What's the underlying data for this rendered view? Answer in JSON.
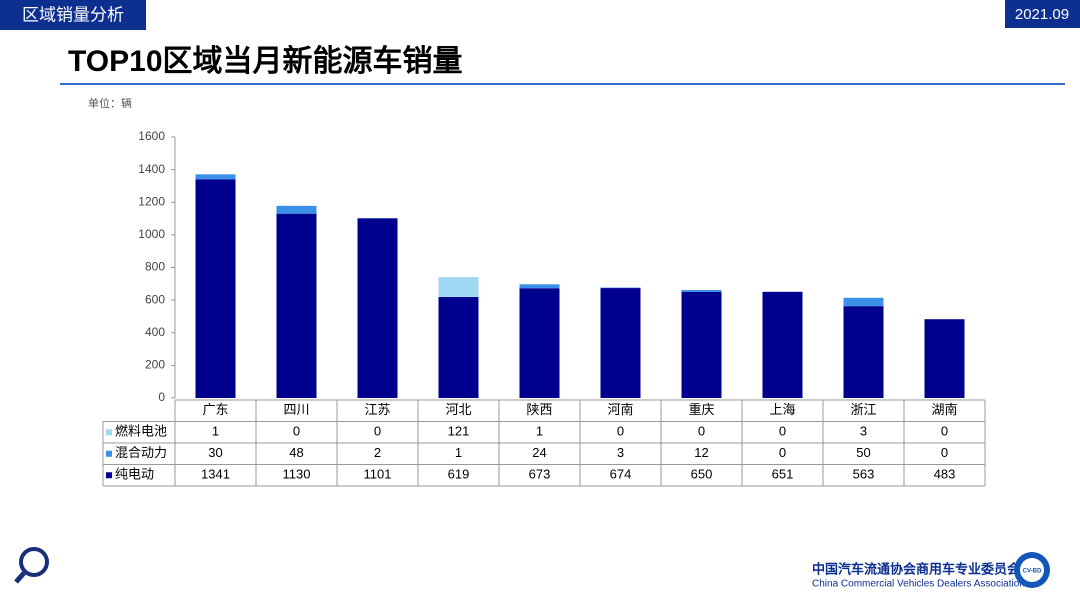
{
  "header": {
    "section": "区域销量分析",
    "date": "2021.09"
  },
  "chart_data": {
    "type": "stacked_bar",
    "title": "TOP10区域当月新能源车销量",
    "unit_label": "单位：辆",
    "categories": [
      "广东",
      "四川",
      "江苏",
      "河北",
      "陕西",
      "河南",
      "重庆",
      "上海",
      "浙江",
      "湖南"
    ],
    "series": [
      {
        "name": "燃料电池",
        "color": "#9fd8f2",
        "values": [
          1,
          0,
          0,
          121,
          1,
          0,
          0,
          0,
          3,
          0
        ]
      },
      {
        "name": "混合动力",
        "color": "#3a8fe8",
        "values": [
          30,
          48,
          2,
          1,
          24,
          3,
          12,
          0,
          50,
          0
        ]
      },
      {
        "name": "纯电动",
        "color": "#00008f",
        "values": [
          1341,
          1130,
          1101,
          619,
          673,
          674,
          650,
          651,
          563,
          483
        ]
      }
    ],
    "ylim": [
      0,
      1600
    ],
    "yticks": [
      0,
      200,
      400,
      600,
      800,
      1000,
      1200,
      1400,
      1600
    ],
    "grid": false
  },
  "footer": {
    "org_cn": "中国汽车流通协会商用车专业委员会",
    "org_en": "China Commercial Vehicles Dealers Association",
    "badge": "CV-BD"
  }
}
